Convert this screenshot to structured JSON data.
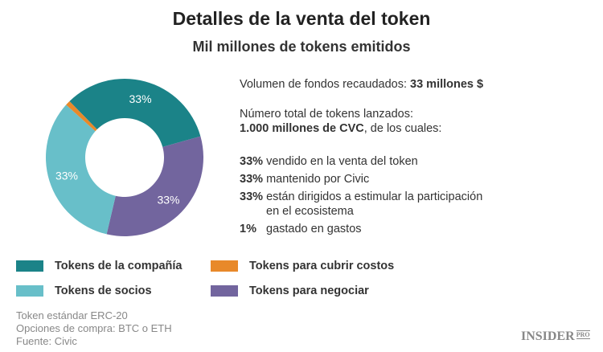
{
  "title": "Detalles de la venta del token",
  "subtitle": "Mil millones de tokens emitidos",
  "chart_data": {
    "type": "pie",
    "donut": true,
    "categories": [
      "Tokens de la compañía",
      "Tokens para negociar",
      "Tokens de socios",
      "Tokens para cubrir costos"
    ],
    "values": [
      33,
      33,
      33,
      1
    ],
    "data_labels": [
      "33%",
      "33%",
      "33%",
      ""
    ],
    "colors": [
      "#1b8388",
      "#72659e",
      "#68bfc9",
      "#e8892a"
    ],
    "legend_position": "bottom"
  },
  "info": {
    "line1_text": "Volumen de fondos recaudados: ",
    "line1_bold": "33 millones $",
    "line2": "Número total de tokens lanzados:",
    "line3_bold": "1.000 millones de CVC",
    "line3_text": ", de los cuales:",
    "items": [
      {
        "pct": "33%",
        "text": "vendido en la venta del token"
      },
      {
        "pct": "33%",
        "text": "mantenido por Civic"
      },
      {
        "pct": "33%",
        "text": "están dirigidos a estimular la participación",
        "text2": "en el ecosistema"
      },
      {
        "pct": "1%",
        "text": "gastado en gastos"
      }
    ]
  },
  "legend": [
    {
      "label": "Tokens de la compañía",
      "color": "#1b8388"
    },
    {
      "label": "Tokens para cubrir costos",
      "color": "#e8892a"
    },
    {
      "label": "Tokens de socios",
      "color": "#68bfc9"
    },
    {
      "label": "Tokens para negociar",
      "color": "#72659e"
    }
  ],
  "footer": [
    "Token estándar ERC-20",
    "Opciones de compra: BTC o ETH",
    "Fuente: Civic"
  ],
  "logo": {
    "main": "INSIDER",
    "sup": "PRO"
  }
}
